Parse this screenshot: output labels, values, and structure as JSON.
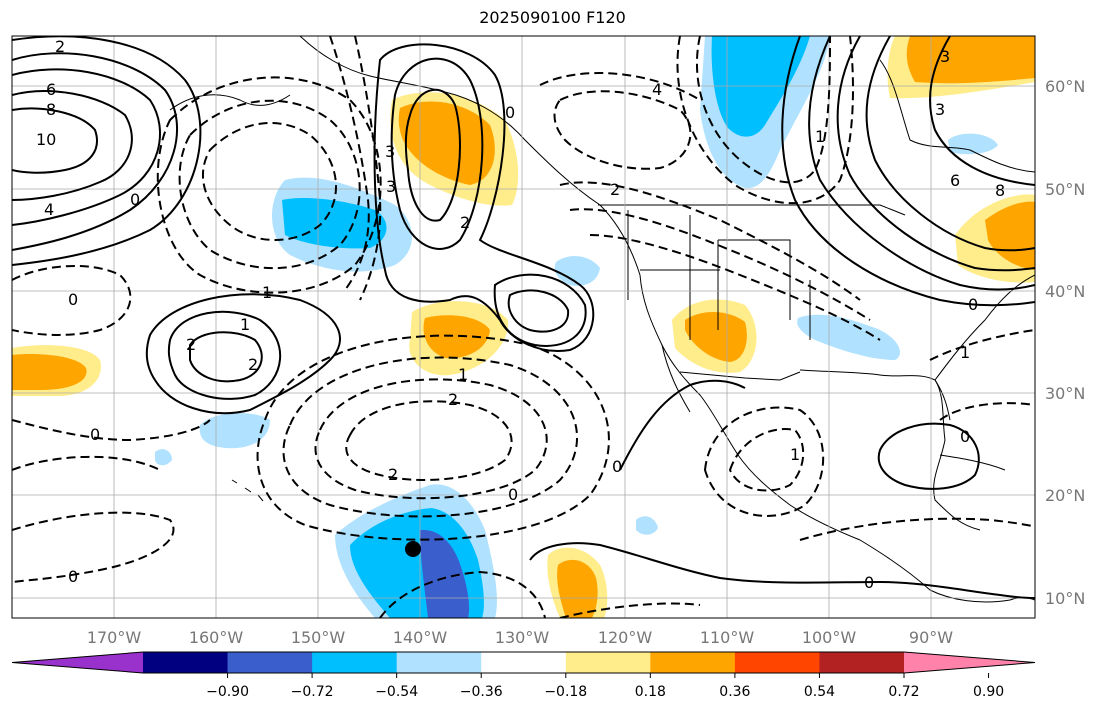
{
  "title": "2025090100 F120",
  "lat_labels": [
    "60°N",
    "50°N",
    "40°N",
    "30°N",
    "20°N",
    "10°N"
  ],
  "lon_labels": [
    "170°W",
    "160°W",
    "150°W",
    "140°W",
    "130°W",
    "120°W",
    "110°W",
    "100°W",
    "90°W"
  ],
  "colorbar": {
    "colors": [
      "#9932CC",
      "#000080",
      "#3A5FCD",
      "#00BFFF",
      "#B0E2FF",
      "#FFFFFF",
      "#FFEC8B",
      "#FFA500",
      "#FF4500",
      "#B22222",
      "#FF82AB"
    ],
    "tick_labels": [
      "−0.90",
      "−0.72",
      "−0.54",
      "−0.36",
      "−0.18",
      "0.18",
      "0.36",
      "0.54",
      "0.72",
      "0.90"
    ]
  },
  "contour_labels": [
    "2",
    "6",
    "8",
    "10",
    "4",
    "0",
    "0",
    "0",
    "1",
    "1",
    "2",
    "2",
    "3",
    "3",
    "2",
    "1",
    "2",
    "0",
    "2",
    "0",
    "1",
    "0",
    "4",
    "6",
    "8",
    "0",
    "1",
    "3",
    "3",
    "2",
    "0",
    "1",
    "0",
    "0"
  ],
  "colors": {
    "contour": "#000000",
    "grid": "#aaaaaa",
    "coast": "#000000"
  }
}
